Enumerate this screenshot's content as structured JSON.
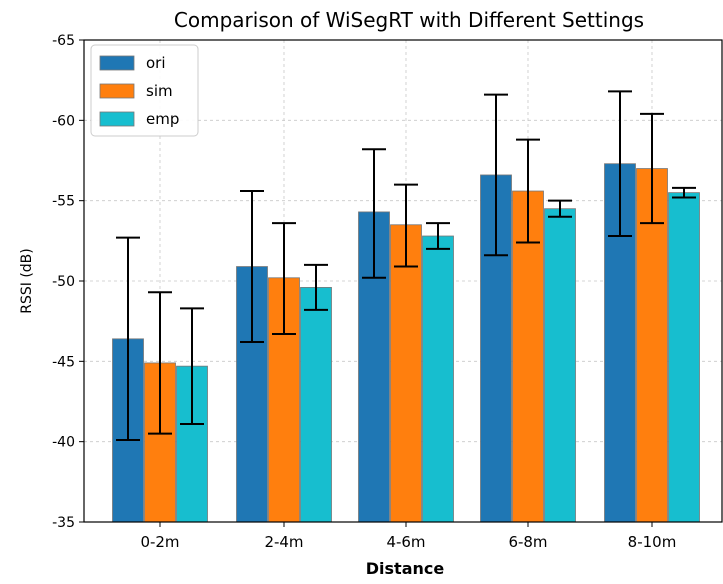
{
  "chart_data": {
    "type": "bar",
    "title": "Comparison of WiSegRT with Different Settings",
    "xlabel": "Distance",
    "ylabel": "RSSI (dB)",
    "categories": [
      "0-2m",
      "2-4m",
      "4-6m",
      "6-8m",
      "8-10m"
    ],
    "ylim": [
      -65,
      -35
    ],
    "yticks": [
      -65,
      -60,
      -55,
      -50,
      -45,
      -40,
      -35
    ],
    "ytick_labels": [
      "-65",
      "-60",
      "-55",
      "-50",
      "-45",
      "-40",
      "-35"
    ],
    "grid": true,
    "legend_position": "top-left",
    "series": [
      {
        "name": "ori",
        "color": "#1f77b4",
        "values": [
          -46.4,
          -50.9,
          -54.3,
          -56.6,
          -57.3
        ],
        "error_low": [
          -40.1,
          -46.2,
          -50.2,
          -51.6,
          -52.8
        ],
        "error_high": [
          -52.7,
          -55.6,
          -58.2,
          -61.6,
          -61.8
        ]
      },
      {
        "name": "sim",
        "color": "#ff7f0e",
        "values": [
          -44.9,
          -50.2,
          -53.5,
          -55.6,
          -57.0
        ],
        "error_low": [
          -40.5,
          -46.7,
          -50.9,
          -52.4,
          -53.6
        ],
        "error_high": [
          -49.3,
          -53.6,
          -56.0,
          -58.8,
          -60.4
        ]
      },
      {
        "name": "emp",
        "color": "#17becf",
        "values": [
          -44.7,
          -49.6,
          -52.8,
          -54.5,
          -55.5
        ],
        "error_low": [
          -41.1,
          -48.2,
          -52.0,
          -54.0,
          -55.2
        ],
        "error_high": [
          -48.3,
          -51.0,
          -53.6,
          -55.0,
          -55.8
        ]
      }
    ]
  }
}
